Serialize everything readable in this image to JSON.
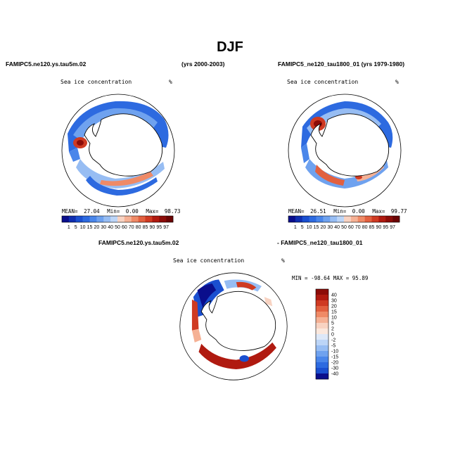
{
  "title": "DJF",
  "panels": {
    "left": {
      "header_left": "FAMIPC5.ne120.ys.tau5m.02",
      "header_right": "(yrs 2000-2003)",
      "variable": "Sea ice concentration",
      "units": "%",
      "stats": {
        "mean_label": "MEAN=",
        "mean": "27.04",
        "min_label": "Min=",
        "min": "0.00",
        "max_label": "Max=",
        "max": "98.73"
      }
    },
    "right": {
      "header": "FAMIPC5_ne120_tau1800_01 (yrs 1979-1980)",
      "variable": "Sea ice concentration",
      "units": "%",
      "stats": {
        "mean_label": "MEAN=",
        "mean": "26.51",
        "min_label": "Min=",
        "min": "0.00",
        "max_label": "Max=",
        "max": "99.77"
      }
    },
    "diff": {
      "header_left": "FAMIPC5.ne120.ys.tau5m.02",
      "header_right": "- FAMIPC5_ne120_tau1800_01",
      "variable": "Sea ice concentration",
      "units": "%",
      "minmax": "MIN = -98.64 MAX =  95.89"
    }
  },
  "colorbars": {
    "conc_levels": [
      "1",
      "5",
      "10",
      "15",
      "20",
      "30",
      "40",
      "50",
      "60",
      "70",
      "80",
      "85",
      "90",
      "95",
      "97"
    ],
    "conc_colors": [
      "#0a0e8c",
      "#0f2eb0",
      "#1a4fd0",
      "#2d6ae0",
      "#4a86ea",
      "#6fa2ef",
      "#97bdf3",
      "#bcd5f7",
      "#f8d3c2",
      "#f5b195",
      "#ef8a66",
      "#e2603f",
      "#cf3a22",
      "#b01a10",
      "#8c0c08",
      "#6a0404"
    ],
    "diff_levels": [
      "40",
      "30",
      "20",
      "15",
      "10",
      "5",
      "2",
      "0",
      "-2",
      "-5",
      "-10",
      "-15",
      "-20",
      "-30",
      "-40"
    ],
    "diff_colors": [
      "#8c0c08",
      "#b01a10",
      "#cf3a22",
      "#e2603f",
      "#ef8a66",
      "#f5b195",
      "#f8d3c2",
      "#fbe8dd",
      "#dde8f8",
      "#bcd5f7",
      "#97bdf3",
      "#6fa2ef",
      "#4a86ea",
      "#2d6ae0",
      "#1a4fd0",
      "#0a0e8c"
    ]
  }
}
